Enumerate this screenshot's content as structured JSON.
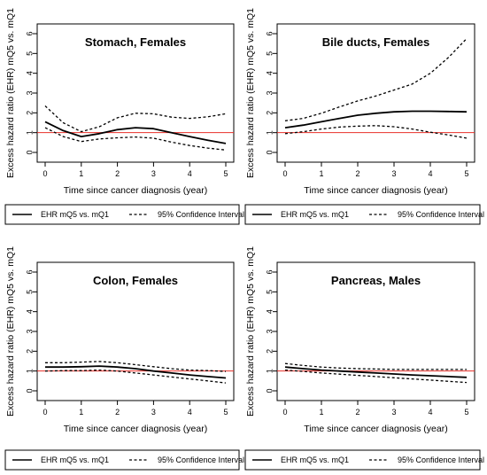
{
  "figure": {
    "legend": {
      "solid_label": "EHR mQ5 vs. mQ1",
      "dashed_label": "95% Confidence Interval"
    },
    "reference_color": "#e8302a"
  },
  "chart_data": [
    {
      "type": "line",
      "title": "Stomach, Females",
      "xlabel": "Time since cancer diagnosis (year)",
      "ylabel": "Excess hazard ratio (EHR) mQ5 vs. mQ1",
      "xlim": [
        0,
        5
      ],
      "ylim": [
        0,
        6
      ],
      "xticks": [
        "0",
        "1",
        "2",
        "3",
        "4",
        "5"
      ],
      "yticks": [
        "0",
        "1",
        "2",
        "3",
        "4",
        "5",
        "6"
      ],
      "reference_line": 1,
      "x": [
        0,
        0.5,
        1,
        1.5,
        2,
        2.5,
        3,
        3.5,
        4,
        4.5,
        5
      ],
      "series": [
        {
          "role": "estimate",
          "style": "solid",
          "values": [
            1.55,
            1.1,
            0.8,
            0.95,
            1.15,
            1.25,
            1.2,
            1.0,
            0.8,
            0.62,
            0.45
          ]
        },
        {
          "role": "upper",
          "style": "dashed",
          "values": [
            2.35,
            1.5,
            1.05,
            1.3,
            1.75,
            1.98,
            1.95,
            1.78,
            1.72,
            1.8,
            1.95
          ]
        },
        {
          "role": "lower",
          "style": "dashed",
          "values": [
            1.25,
            0.8,
            0.55,
            0.68,
            0.74,
            0.78,
            0.72,
            0.52,
            0.35,
            0.22,
            0.12
          ]
        }
      ]
    },
    {
      "type": "line",
      "title": "Bile ducts, Females",
      "xlabel": "Time since cancer diagnosis (year)",
      "ylabel": "Excess hazard ratio (EHR) mQ5 vs. mQ1",
      "xlim": [
        0,
        5
      ],
      "ylim": [
        0,
        6
      ],
      "xticks": [
        "0",
        "1",
        "2",
        "3",
        "4",
        "5"
      ],
      "yticks": [
        "0",
        "1",
        "2",
        "3",
        "4",
        "5",
        "6"
      ],
      "reference_line": 1,
      "x": [
        0,
        0.5,
        1,
        1.5,
        2,
        2.5,
        3,
        3.5,
        4,
        4.5,
        5
      ],
      "series": [
        {
          "role": "estimate",
          "style": "solid",
          "values": [
            1.25,
            1.38,
            1.55,
            1.72,
            1.88,
            1.98,
            2.05,
            2.08,
            2.08,
            2.07,
            2.05
          ]
        },
        {
          "role": "upper",
          "style": "dashed",
          "values": [
            1.6,
            1.72,
            1.98,
            2.3,
            2.6,
            2.85,
            3.15,
            3.45,
            4.0,
            4.8,
            5.75
          ]
        },
        {
          "role": "lower",
          "style": "dashed",
          "values": [
            0.95,
            1.05,
            1.18,
            1.28,
            1.33,
            1.35,
            1.3,
            1.18,
            1.02,
            0.88,
            0.72
          ]
        }
      ]
    },
    {
      "type": "line",
      "title": "Colon, Females",
      "xlabel": "Time since cancer diagnosis (year)",
      "ylabel": "Excess hazard ratio (EHR) mQ5 vs. mQ1",
      "xlim": [
        0,
        5
      ],
      "ylim": [
        0,
        6
      ],
      "xticks": [
        "0",
        "1",
        "2",
        "3",
        "4",
        "5"
      ],
      "yticks": [
        "0",
        "1",
        "2",
        "3",
        "4",
        "5",
        "6"
      ],
      "reference_line": 1,
      "x": [
        0,
        0.5,
        1,
        1.5,
        2,
        2.5,
        3,
        3.5,
        4,
        4.5,
        5
      ],
      "series": [
        {
          "role": "estimate",
          "style": "solid",
          "values": [
            1.2,
            1.2,
            1.22,
            1.25,
            1.2,
            1.12,
            1.0,
            0.9,
            0.8,
            0.72,
            0.65
          ]
        },
        {
          "role": "upper",
          "style": "dashed",
          "values": [
            1.42,
            1.42,
            1.45,
            1.48,
            1.42,
            1.32,
            1.22,
            1.12,
            1.05,
            1.02,
            0.98
          ]
        },
        {
          "role": "lower",
          "style": "dashed",
          "values": [
            1.0,
            1.02,
            1.02,
            1.05,
            1.0,
            0.9,
            0.8,
            0.7,
            0.6,
            0.5,
            0.4
          ]
        }
      ]
    },
    {
      "type": "line",
      "title": "Pancreas, Males",
      "xlabel": "Time since cancer diagnosis (year)",
      "ylabel": "Excess hazard ratio (EHR) mQ5 vs. mQ1",
      "xlim": [
        0,
        5
      ],
      "ylim": [
        0,
        6
      ],
      "xticks": [
        "0",
        "1",
        "2",
        "3",
        "4",
        "5"
      ],
      "yticks": [
        "0",
        "1",
        "2",
        "3",
        "4",
        "5",
        "6"
      ],
      "reference_line": 1,
      "x": [
        0,
        0.5,
        1,
        1.5,
        2,
        2.5,
        3,
        3.5,
        4,
        4.5,
        5
      ],
      "series": [
        {
          "role": "estimate",
          "style": "solid",
          "values": [
            1.2,
            1.12,
            1.05,
            1.0,
            0.95,
            0.9,
            0.85,
            0.8,
            0.76,
            0.72,
            0.68
          ]
        },
        {
          "role": "upper",
          "style": "dashed",
          "values": [
            1.38,
            1.28,
            1.2,
            1.15,
            1.12,
            1.1,
            1.08,
            1.08,
            1.08,
            1.08,
            1.08
          ]
        },
        {
          "role": "lower",
          "style": "dashed",
          "values": [
            1.05,
            0.98,
            0.9,
            0.84,
            0.78,
            0.72,
            0.66,
            0.6,
            0.54,
            0.48,
            0.42
          ]
        }
      ]
    }
  ]
}
